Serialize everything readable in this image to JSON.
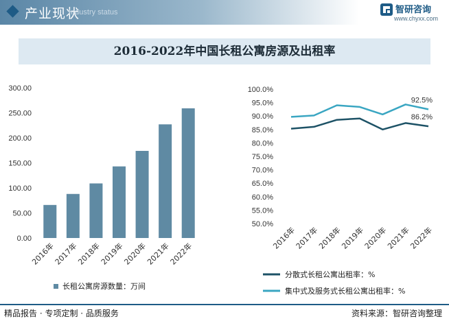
{
  "header": {
    "title": "产业现状",
    "subtitle": "Industry status",
    "logo_name": "智研咨询",
    "logo_url": "www.chyxx.com"
  },
  "footer": {
    "left": "精品报告 · 专项定制 · 品质服务",
    "right": "资料来源：智研咨询整理"
  },
  "colors": {
    "bar": "#5f8aa3",
    "series_dispersed": "#1d5266",
    "series_centralized": "#3aa6c2"
  },
  "chart_data": [
    {
      "type": "bar",
      "title": "2016-2022年中国长租公寓房源及出租率",
      "categories": [
        "2016年",
        "2017年",
        "2018年",
        "2019年",
        "2020年",
        "2021年",
        "2022年"
      ],
      "series": [
        {
          "name": "长租公寓房源数量：万间",
          "values": [
            66,
            88,
            109,
            143,
            174,
            227,
            259
          ]
        }
      ],
      "ylim": [
        0,
        300
      ],
      "yticks": [
        "0.00",
        "50.00",
        "100.00",
        "150.00",
        "200.00",
        "250.00",
        "300.00"
      ],
      "grid": false,
      "legend": "bottom"
    },
    {
      "type": "line",
      "categories": [
        "2016年",
        "2017年",
        "2018年",
        "2019年",
        "2020年",
        "2021年",
        "2022年"
      ],
      "series": [
        {
          "name": "分散式长租公寓出租率：%",
          "values": [
            85.3,
            86.0,
            88.6,
            89.1,
            85.0,
            87.4,
            86.2
          ]
        },
        {
          "name": "集中式及服务式长租公寓出租率：%",
          "values": [
            89.7,
            90.2,
            94.0,
            93.4,
            90.6,
            94.3,
            92.5
          ]
        }
      ],
      "data_labels": {
        "dispersed_last": "86.2%",
        "centralized_last": "92.5%"
      },
      "ylim": [
        50,
        100
      ],
      "yticks": [
        "50.0%",
        "55.0%",
        "60.0%",
        "65.0%",
        "70.0%",
        "75.0%",
        "80.0%",
        "85.0%",
        "90.0%",
        "95.0%",
        "100.0%"
      ],
      "grid": false,
      "legend": "bottom"
    }
  ]
}
